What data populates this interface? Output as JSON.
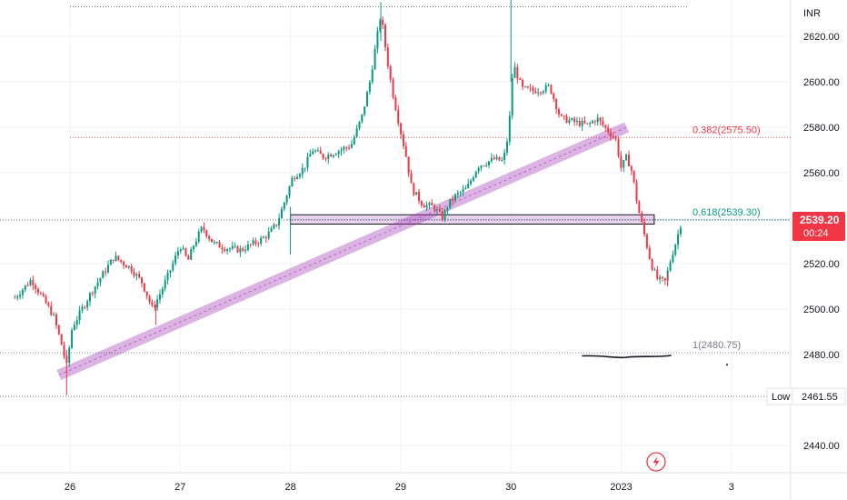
{
  "chart_data": {
    "type": "candlestick",
    "currency": "INR",
    "ylim": [
      2428,
      2636
    ],
    "y_ticks": [
      "2620.00",
      "2600.00",
      "2580.00",
      "2560.00",
      "2540.00",
      "2520.00",
      "2500.00",
      "2480.00",
      "2460.00",
      "2440.00"
    ],
    "x_ticks": [
      "26",
      "27",
      "28",
      "29",
      "30",
      "2023",
      "3"
    ],
    "last_price": {
      "label": "2539.20",
      "value": 2539.2,
      "countdown": "00:24",
      "color": "#f23645"
    },
    "low": {
      "label": "Low",
      "value_label": "2461.55",
      "value": 2461.55
    },
    "fib_levels": [
      {
        "label": "0.382(2575.50)",
        "value": 2575.5,
        "color": "#f23645"
      },
      {
        "label": "0.618(2539.30)",
        "value": 2539.3,
        "color": "#089981"
      },
      {
        "label": "1(2480.75)",
        "value": 2480.75,
        "color": "#787b86"
      }
    ],
    "top_level": {
      "value": 2633
    },
    "zone": {
      "from_day": 28.0,
      "to_day": 31.3,
      "top": 2541.5,
      "bottom": 2537.4,
      "color": "#9c27b0"
    },
    "trendline": {
      "start": [
        25.9,
        2471
      ],
      "end": [
        31.05,
        2580
      ],
      "color": "#9c27b0"
    },
    "drawing": {
      "from_day": 30.65,
      "to_day": 31.45,
      "value": 2479.4
    },
    "colors": {
      "up": "#089981",
      "down": "#f23645"
    },
    "series": [
      {
        "name": "price",
        "points": [
          [
            25.5,
            2505
          ],
          [
            25.65,
            2513
          ],
          [
            25.85,
            2497
          ],
          [
            25.92,
            2485
          ],
          [
            25.97,
            2475
          ],
          [
            26.02,
            2492
          ],
          [
            26.2,
            2508
          ],
          [
            26.4,
            2523
          ],
          [
            26.55,
            2518
          ],
          [
            26.65,
            2512
          ],
          [
            26.75,
            2500
          ],
          [
            26.82,
            2507
          ],
          [
            26.9,
            2516
          ],
          [
            27.0,
            2528
          ],
          [
            27.07,
            2521
          ],
          [
            27.12,
            2528
          ],
          [
            27.2,
            2536
          ],
          [
            27.3,
            2529
          ],
          [
            27.4,
            2527
          ],
          [
            27.55,
            2526
          ],
          [
            27.75,
            2531
          ],
          [
            27.82,
            2534
          ],
          [
            27.88,
            2538
          ],
          [
            27.93,
            2545
          ],
          [
            28.02,
            2558
          ],
          [
            28.12,
            2562
          ],
          [
            28.2,
            2570
          ],
          [
            28.3,
            2567
          ],
          [
            28.45,
            2570
          ],
          [
            28.55,
            2572
          ],
          [
            28.65,
            2585
          ],
          [
            28.72,
            2600
          ],
          [
            28.78,
            2618
          ],
          [
            28.82,
            2630
          ],
          [
            28.87,
            2612
          ],
          [
            28.92,
            2597
          ],
          [
            29.0,
            2578
          ],
          [
            29.05,
            2567
          ],
          [
            29.1,
            2553
          ],
          [
            29.2,
            2546
          ],
          [
            29.3,
            2545
          ],
          [
            29.38,
            2540
          ],
          [
            29.43,
            2546
          ],
          [
            29.5,
            2550
          ],
          [
            29.6,
            2553
          ],
          [
            29.7,
            2563
          ],
          [
            29.85,
            2566
          ],
          [
            29.93,
            2565
          ],
          [
            29.98,
            2578
          ],
          [
            30.02,
            2608
          ],
          [
            30.1,
            2597
          ],
          [
            30.2,
            2596
          ],
          [
            30.3,
            2597
          ],
          [
            30.35,
            2598
          ],
          [
            30.45,
            2584
          ],
          [
            30.6,
            2582
          ],
          [
            30.7,
            2581
          ],
          [
            30.78,
            2584
          ],
          [
            30.85,
            2580
          ],
          [
            30.95,
            2575
          ],
          [
            31.0,
            2562
          ],
          [
            31.05,
            2567
          ],
          [
            31.1,
            2560
          ],
          [
            31.15,
            2545
          ],
          [
            31.2,
            2535
          ],
          [
            31.27,
            2520
          ],
          [
            31.33,
            2513
          ],
          [
            31.4,
            2512
          ],
          [
            31.45,
            2522
          ],
          [
            31.5,
            2530
          ],
          [
            31.55,
            2539.2
          ]
        ]
      }
    ]
  }
}
